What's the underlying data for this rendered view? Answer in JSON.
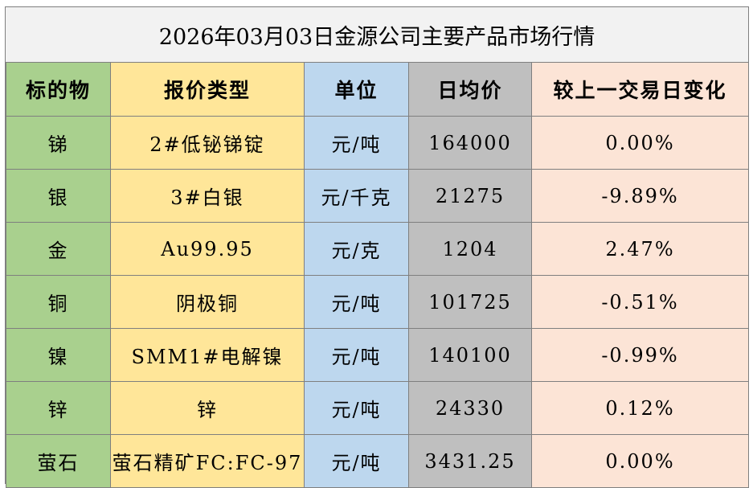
{
  "title": "2026年03月03日金源公司主要产品市场行情",
  "headers": [
    "标的物",
    "报价类型",
    "单位",
    "日均价",
    "较上一交易日变化"
  ],
  "rows": [
    {
      "item": "锑",
      "type": "2#低铋锑锭",
      "unit": "元/吨",
      "price": "164000",
      "change": "0.00%"
    },
    {
      "item": "银",
      "type": "3#白银",
      "unit": "元/千克",
      "price": "21275",
      "change": "-9.89%"
    },
    {
      "item": "金",
      "type": "Au99.95",
      "unit": "元/克",
      "price": "1204",
      "change": "2.47%"
    },
    {
      "item": "铜",
      "type": "阴极铜",
      "unit": "元/吨",
      "price": "101725",
      "change": "-0.51%"
    },
    {
      "item": "镍",
      "type": "SMM1#电解镍",
      "unit": "元/吨",
      "price": "140100",
      "change": "-0.99%"
    },
    {
      "item": "锌",
      "type": "锌",
      "unit": "元/吨",
      "price": "24330",
      "change": "0.12%"
    },
    {
      "item": "萤石",
      "type": "萤石精矿FC:FC-97",
      "unit": "元/吨",
      "price": "3431.25",
      "change": "0.00%"
    }
  ],
  "colors": {
    "item_column": "#a9d08e",
    "type_column": "#ffe699",
    "unit_column": "#bdd7ee",
    "price_column": "#bfbfbf",
    "change_column": "#fce4d6",
    "title_background": "#f2f2f2"
  }
}
